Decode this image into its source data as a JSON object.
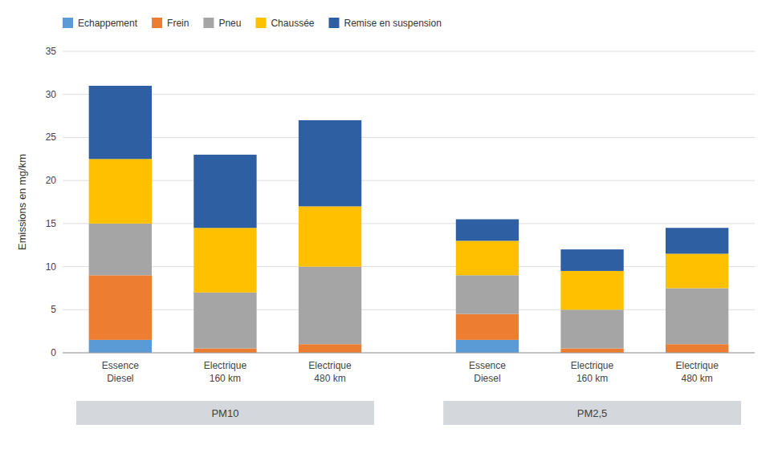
{
  "chart_data": {
    "type": "bar",
    "stacked": true,
    "categories": [
      "Essence\nDiesel",
      "Electrique\n160 km",
      "Electrique\n480 km",
      "Essence\nDiesel",
      "Electrique\n160 km",
      "Electrique\n480 km"
    ],
    "group_labels": [
      "PM10",
      "PM2,5"
    ],
    "series": [
      {
        "name": "Echappement",
        "color": "#5B9BD5",
        "values": [
          1.5,
          0.0,
          0.0,
          1.5,
          0.0,
          0.0
        ]
      },
      {
        "name": "Frein",
        "color": "#ED7D31",
        "values": [
          7.5,
          0.5,
          1.0,
          3.0,
          0.5,
          1.0
        ]
      },
      {
        "name": "Pneu",
        "color": "#A5A5A5",
        "values": [
          6.0,
          6.5,
          9.0,
          4.5,
          4.5,
          6.5
        ]
      },
      {
        "name": "Chaussée",
        "color": "#FFC000",
        "values": [
          7.5,
          7.5,
          7.0,
          4.0,
          4.5,
          4.0
        ]
      },
      {
        "name": "Remise en suspension",
        "color": "#2E5FA3",
        "values": [
          8.5,
          8.5,
          10.0,
          2.5,
          2.5,
          3.0
        ]
      }
    ],
    "ylabel": "Emissions en mg/km",
    "ylim": [
      0,
      35
    ],
    "yticks": [
      0,
      5,
      10,
      15,
      20,
      25,
      30,
      35
    ],
    "grid": true,
    "legend": "top-left"
  }
}
